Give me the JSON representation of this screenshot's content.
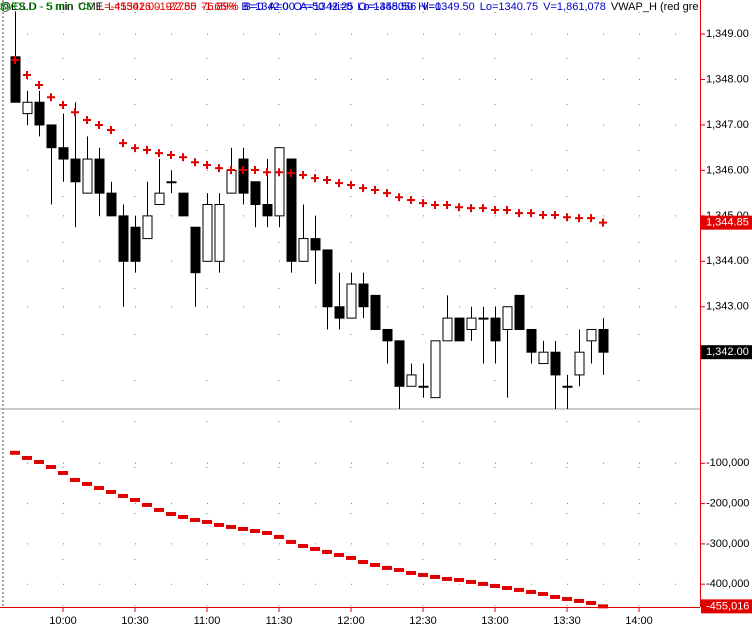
{
  "chart_data": [
    {
      "type": "candlestick",
      "header": [
        {
          "text": "@ES.D - 5 min",
          "color": "#000000"
        },
        {
          "text": "CME",
          "color": "#000000"
        },
        {
          "text": "L=1342.00",
          "color": "#e00000"
        },
        {
          "text": "-22.50",
          "color": "#e00000"
        },
        {
          "text": "-1.65%",
          "color": "#e00000"
        },
        {
          "text": "B=1342.00",
          "color": "#0000cc"
        },
        {
          "text": "A=1342.25",
          "color": "#0000cc"
        },
        {
          "text": "O=1348.50",
          "color": "#0000cc"
        },
        {
          "text": "Hi=1349.50",
          "color": "#0000cc"
        },
        {
          "text": "Lo=1340.75",
          "color": "#0000cc"
        },
        {
          "text": "V=1,861,078",
          "color": "#0000cc"
        },
        {
          "text": "VWAP_H (red gre",
          "color": "#000000"
        }
      ],
      "x": [
        580,
        585,
        590,
        595,
        600,
        605,
        610,
        615,
        620,
        625,
        630,
        635,
        640,
        645,
        650,
        655,
        660,
        665,
        670,
        675,
        680,
        685,
        690,
        695,
        700,
        705,
        710,
        715,
        720,
        725,
        730,
        735,
        740,
        745,
        750,
        755,
        760,
        765,
        770,
        775,
        780,
        785,
        790,
        795,
        800,
        805,
        810,
        815,
        820,
        825
      ],
      "xlim": [
        573.75,
        865.4
      ],
      "open": [
        1348.5,
        1347.25,
        1347.5,
        1347,
        1346.5,
        1346.25,
        1345.5,
        1346.25,
        1345.5,
        1345,
        1344.75,
        1344.5,
        1345.25,
        1345.75,
        1345.5,
        1344.75,
        1344,
        1344,
        1345.5,
        1346.25,
        1345.75,
        1345.25,
        1345,
        1346.25,
        1344,
        1344.5,
        1344.25,
        1343,
        1342.75,
        1343.5,
        1343.25,
        1342.5,
        1342.25,
        1341.25,
        1341.25,
        1341,
        1342.25,
        1342.75,
        1342.5,
        1342.75,
        1342.75,
        1342.5,
        1343.25,
        1342.5,
        1341.75,
        1342,
        1341.25,
        1341.5,
        1342.25,
        1342.5
      ],
      "high": [
        1349.5,
        1347.75,
        1347.75,
        1347,
        1347.25,
        1347.5,
        1346.75,
        1346.5,
        1345.75,
        1345.25,
        1345,
        1345.75,
        1346.25,
        1346,
        1345.5,
        1344.75,
        1345.5,
        1345.5,
        1346.5,
        1346.5,
        1345.75,
        1346.25,
        1346.5,
        1346.25,
        1345.25,
        1345,
        1344.25,
        1343.75,
        1343.75,
        1343.75,
        1343.25,
        1342.5,
        1342.25,
        1341.75,
        1341.75,
        1342.25,
        1343.25,
        1342.75,
        1343,
        1343,
        1343,
        1343,
        1343.25,
        1342.5,
        1342.25,
        1342.25,
        1341.5,
        1342.5,
        1342.5,
        1342.75
      ],
      "low": [
        1347.5,
        1347,
        1346.75,
        1345.25,
        1345.75,
        1344.75,
        1345.5,
        1345,
        1345,
        1343,
        1343.75,
        1344.5,
        1345.25,
        1345.5,
        1345,
        1343,
        1344,
        1343.75,
        1345.5,
        1345.25,
        1344.75,
        1344.75,
        1344.75,
        1343.75,
        1344,
        1343.5,
        1342.5,
        1342.5,
        1342.75,
        1342.75,
        1342.5,
        1341.75,
        1340.75,
        1341.25,
        1341,
        1341,
        1342.25,
        1342.25,
        1342.25,
        1341.75,
        1341.75,
        1341,
        1342.5,
        1341.75,
        1341.75,
        1340.75,
        1340.75,
        1341.25,
        1341.75,
        1341.5
      ],
      "close": [
        1347.5,
        1347.5,
        1347,
        1346.5,
        1346.25,
        1345.75,
        1346.25,
        1345.5,
        1345,
        1344,
        1344,
        1345,
        1345.5,
        1345.75,
        1345,
        1343.75,
        1345.25,
        1345.25,
        1346,
        1345.5,
        1345.25,
        1345,
        1346.5,
        1344,
        1344.5,
        1344.25,
        1343,
        1342.75,
        1343.5,
        1343,
        1342.5,
        1342.25,
        1341.25,
        1341.5,
        1341.25,
        1342.25,
        1342.75,
        1342.25,
        1342.75,
        1342.75,
        1342.25,
        1343,
        1342.5,
        1342,
        1342,
        1341.5,
        1341.25,
        1342,
        1342.5,
        1342
      ],
      "up_color": "#ffffff",
      "down_color": "#000000",
      "overlay": {
        "marker": "+",
        "color": "#e00000",
        "values": [
          1348.43,
          1348.1,
          1347.88,
          1347.61,
          1347.44,
          1347.28,
          1347.11,
          1347,
          1346.89,
          1346.6,
          1346.49,
          1346.45,
          1346.38,
          1346.34,
          1346.29,
          1346.18,
          1346.12,
          1346.05,
          1346.01,
          1346.01,
          1346.01,
          1345.96,
          1345.96,
          1345.94,
          1345.9,
          1345.83,
          1345.79,
          1345.72,
          1345.68,
          1345.61,
          1345.57,
          1345.5,
          1345.41,
          1345.35,
          1345.28,
          1345.24,
          1345.24,
          1345.19,
          1345.17,
          1345.17,
          1345.13,
          1345.13,
          1345.06,
          1345.06,
          1345.02,
          1345.02,
          1344.97,
          1344.95,
          1344.95,
          1344.85
        ]
      },
      "ylim": [
        1340.75,
        1349.75
      ],
      "yticks": [
        {
          "value": 1343,
          "label": "1,343.00"
        },
        {
          "value": 1344,
          "label": "1,344.00"
        },
        {
          "value": 1345,
          "label": "1,345.00"
        },
        {
          "value": 1346,
          "label": "1,346.00"
        },
        {
          "value": 1347,
          "label": "1,347.00"
        },
        {
          "value": 1348,
          "label": "1,348.00"
        },
        {
          "value": 1349,
          "label": "1,349.00"
        }
      ],
      "grid": true,
      "tags": [
        {
          "value": 1344.85,
          "label": "1,344.85",
          "color": "#e00000"
        },
        {
          "value": 1342,
          "label": "1,342.00",
          "color": "#000000"
        }
      ]
    },
    {
      "type": "dash",
      "header": [
        {
          "text": "$VOLD - 5 min",
          "color": "#00a000"
        },
        {
          "text": "US",
          "color": "#00a000"
        },
        {
          "text": "L=-455016",
          "color": "#e00000"
        },
        {
          "text": "-197785",
          "color": "#e00000"
        },
        {
          "text": "76.89%",
          "color": "#e00000"
        },
        {
          "text": "B=0",
          "color": "#0000cc"
        },
        {
          "text": "A=0",
          "color": "#0000cc"
        },
        {
          "text": "O=-50",
          "color": "#0000cc"
        },
        {
          "text": "Hi=0",
          "color": "#0000cc"
        },
        {
          "text": "Lo=-455056",
          "color": "#0000cc"
        },
        {
          "text": "V=0",
          "color": "#0000cc"
        }
      ],
      "color": "#e00000",
      "values": [
        -74000,
        -86800,
        -96800,
        -109200,
        -124100,
        -141400,
        -151300,
        -161300,
        -171200,
        -181100,
        -191000,
        -203400,
        -215800,
        -225800,
        -233200,
        -240700,
        -245600,
        -253100,
        -258000,
        -263000,
        -268000,
        -272900,
        -282800,
        -295200,
        -305200,
        -312600,
        -320000,
        -327500,
        -334900,
        -344900,
        -352300,
        -359700,
        -364700,
        -372200,
        -377100,
        -382100,
        -387000,
        -389500,
        -394500,
        -399400,
        -404400,
        -409400,
        -414300,
        -419300,
        -424300,
        -431700,
        -436700,
        -441600,
        -446600,
        -455016
      ],
      "xlim": [
        573.75,
        865.4
      ],
      "xticks": [
        {
          "value": 600,
          "label": "10:00"
        },
        {
          "value": 630,
          "label": "10:30"
        },
        {
          "value": 660,
          "label": "11:00"
        },
        {
          "value": 690,
          "label": "11:30"
        },
        {
          "value": 720,
          "label": "12:00"
        },
        {
          "value": 750,
          "label": "12:30"
        },
        {
          "value": 780,
          "label": "13:00"
        },
        {
          "value": 810,
          "label": "13:30"
        },
        {
          "value": 840,
          "label": "14:00"
        }
      ],
      "ylim": [
        -456600,
        34700
      ],
      "yticks": [
        {
          "value": -100000,
          "label": "-100,000"
        },
        {
          "value": -200000,
          "label": "-200,000"
        },
        {
          "value": -300000,
          "label": "-300,000"
        },
        {
          "value": -400000,
          "label": "-400,000"
        }
      ],
      "grid": true,
      "tags": [
        {
          "value": -455016,
          "label": "-455,016",
          "color": "#e00000"
        }
      ]
    }
  ]
}
